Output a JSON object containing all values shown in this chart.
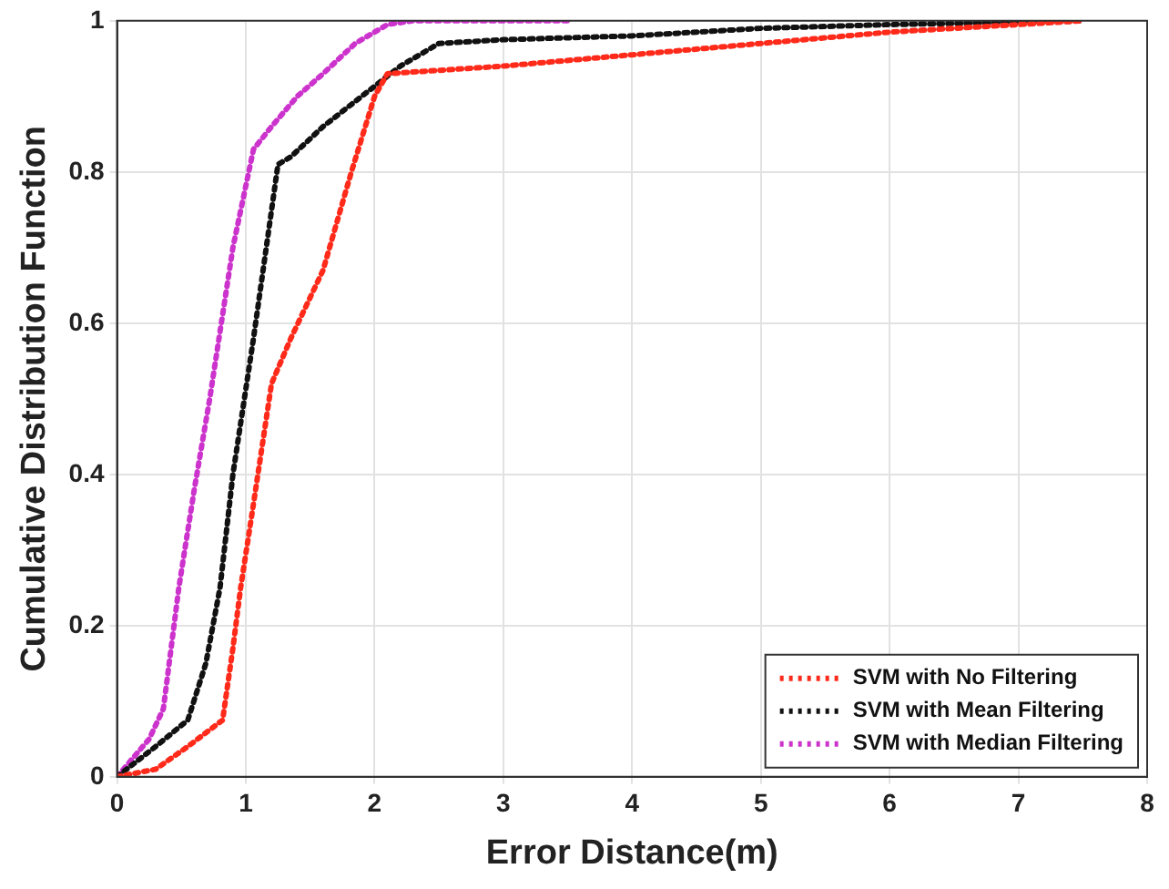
{
  "chart_data": {
    "type": "line",
    "xlabel": "Error Distance(m)",
    "ylabel": "Cumulative Distribution Function",
    "xlim": [
      0,
      8
    ],
    "ylim": [
      0,
      1
    ],
    "xticks": [
      0,
      1,
      2,
      3,
      4,
      5,
      6,
      7,
      8
    ],
    "yticks": [
      0,
      0.2,
      0.4,
      0.6,
      0.8,
      1
    ],
    "grid": true,
    "legend": "bottom right",
    "marker": "none",
    "line_style": "dotted",
    "series": [
      {
        "name": "SVM with No Filtering",
        "color": "#ff2a1a",
        "x": [
          0,
          0.3,
          0.55,
          0.82,
          0.9,
          0.96,
          1.05,
          1.2,
          1.35,
          1.6,
          1.82,
          2.0,
          2.1,
          3,
          4,
          5,
          6,
          7,
          7.5
        ],
        "values": [
          0,
          0.01,
          0.04,
          0.075,
          0.17,
          0.25,
          0.35,
          0.52,
          0.58,
          0.67,
          0.8,
          0.9,
          0.93,
          0.94,
          0.955,
          0.97,
          0.985,
          0.995,
          1
        ]
      },
      {
        "name": "SVM with Mean Filtering",
        "color": "#111111",
        "x": [
          0,
          0.3,
          0.55,
          0.69,
          0.8,
          0.9,
          1.06,
          1.25,
          1.35,
          1.6,
          1.9,
          2.2,
          2.5,
          3,
          4,
          5,
          6,
          7,
          7.5
        ],
        "values": [
          0,
          0.04,
          0.075,
          0.15,
          0.25,
          0.4,
          0.58,
          0.81,
          0.82,
          0.86,
          0.9,
          0.94,
          0.97,
          0.975,
          0.98,
          0.99,
          0.995,
          0.998,
          1
        ]
      },
      {
        "name": "SVM with Median Filtering",
        "color": "#cc33cc",
        "x": [
          0,
          0.25,
          0.36,
          0.48,
          0.6,
          0.72,
          0.9,
          1.06,
          1.2,
          1.4,
          1.6,
          1.85,
          2.1,
          2.3,
          3.5
        ],
        "values": [
          0,
          0.05,
          0.09,
          0.25,
          0.38,
          0.5,
          0.7,
          0.83,
          0.86,
          0.9,
          0.93,
          0.97,
          0.995,
          1,
          1
        ]
      }
    ]
  }
}
